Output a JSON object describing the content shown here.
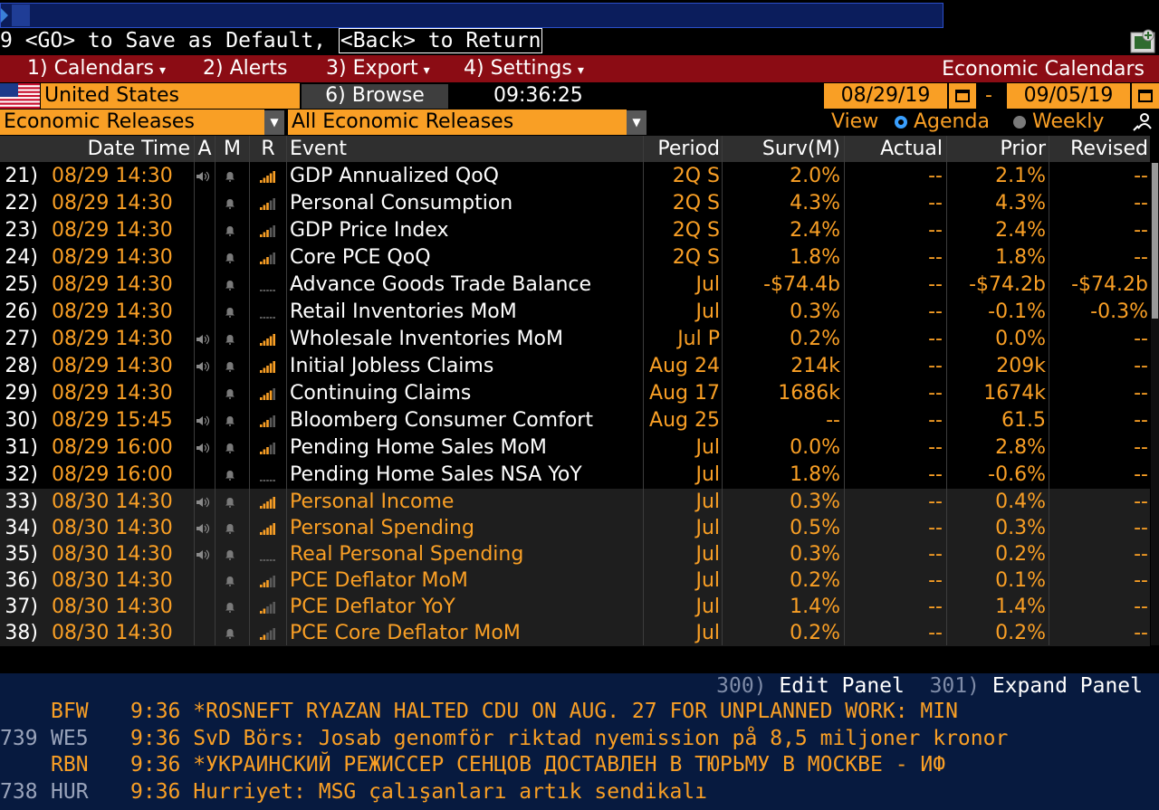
{
  "command_hint": {
    "prefix": "9 <GO> to Save as Default, ",
    "back": "<Back> to Return"
  },
  "menu": {
    "items": [
      {
        "label": "1) Calendars",
        "dropdown": true
      },
      {
        "label": "2) Alerts",
        "dropdown": false
      },
      {
        "label": "3) Export",
        "dropdown": true
      },
      {
        "label": "4) Settings",
        "dropdown": true
      }
    ],
    "title": "Economic Calendars"
  },
  "toolbar": {
    "country": "United States",
    "browse_label": "6) Browse",
    "time": "09:36:25",
    "start_date": "08/29/19",
    "range_dash": "-",
    "end_date": "09/05/19",
    "category": "Economic Releases",
    "filter": "All Economic Releases",
    "view_label": "View",
    "view_options": [
      {
        "label": "Agenda",
        "selected": true
      },
      {
        "label": "Weekly",
        "selected": false
      }
    ]
  },
  "table": {
    "headers": {
      "date_time": "Date Time",
      "a": "A",
      "m": "M",
      "r": "R",
      "event": "Event",
      "period": "Period",
      "surv": "Surv(M)",
      "actual": "Actual",
      "prior": "Prior",
      "revised": "Revised"
    },
    "rows": [
      {
        "num": "21)",
        "dt": "08/29 14:30",
        "audio": true,
        "rel": 5,
        "event": "GDP Annualized QoQ",
        "period": "2Q S",
        "surv": "2.0%",
        "actual": "--",
        "prior": "2.1%",
        "revised": "--"
      },
      {
        "num": "22)",
        "dt": "08/29 14:30",
        "audio": false,
        "rel": 3,
        "event": "Personal Consumption",
        "period": "2Q S",
        "surv": "4.3%",
        "actual": "--",
        "prior": "4.3%",
        "revised": "--"
      },
      {
        "num": "23)",
        "dt": "08/29 14:30",
        "audio": false,
        "rel": 3,
        "event": "GDP Price Index",
        "period": "2Q S",
        "surv": "2.4%",
        "actual": "--",
        "prior": "2.4%",
        "revised": "--"
      },
      {
        "num": "24)",
        "dt": "08/29 14:30",
        "audio": false,
        "rel": 3,
        "event": "Core PCE QoQ",
        "period": "2Q S",
        "surv": "1.8%",
        "actual": "--",
        "prior": "1.8%",
        "revised": "--"
      },
      {
        "num": "25)",
        "dt": "08/29 14:30",
        "audio": false,
        "rel": 0,
        "event": "Advance Goods Trade Balance",
        "period": "Jul",
        "surv": "-$74.4b",
        "actual": "--",
        "prior": "-$74.2b",
        "revised": "-$74.2b"
      },
      {
        "num": "26)",
        "dt": "08/29 14:30",
        "audio": false,
        "rel": 0,
        "event": "Retail Inventories MoM",
        "period": "Jul",
        "surv": "0.3%",
        "actual": "--",
        "prior": "-0.1%",
        "revised": "-0.3%"
      },
      {
        "num": "27)",
        "dt": "08/29 14:30",
        "audio": true,
        "rel": 5,
        "event": "Wholesale Inventories MoM",
        "period": "Jul P",
        "surv": "0.2%",
        "actual": "--",
        "prior": "0.0%",
        "revised": "--"
      },
      {
        "num": "28)",
        "dt": "08/29 14:30",
        "audio": true,
        "rel": 5,
        "event": "Initial Jobless Claims",
        "period": "Aug 24",
        "surv": "214k",
        "actual": "--",
        "prior": "209k",
        "revised": "--"
      },
      {
        "num": "29)",
        "dt": "08/29 14:30",
        "audio": false,
        "rel": 4,
        "event": "Continuing Claims",
        "period": "Aug 17",
        "surv": "1686k",
        "actual": "--",
        "prior": "1674k",
        "revised": "--"
      },
      {
        "num": "30)",
        "dt": "08/29 15:45",
        "audio": true,
        "rel": 3,
        "event": "Bloomberg Consumer Comfort",
        "period": "Aug 25",
        "surv": "--",
        "actual": "--",
        "prior": "61.5",
        "revised": "--"
      },
      {
        "num": "31)",
        "dt": "08/29 16:00",
        "audio": true,
        "rel": 3,
        "event": "Pending Home Sales MoM",
        "period": "Jul",
        "surv": "0.0%",
        "actual": "--",
        "prior": "2.8%",
        "revised": "--"
      },
      {
        "num": "32)",
        "dt": "08/29 16:00",
        "audio": false,
        "rel": 0,
        "event": "Pending Home Sales NSA YoY",
        "period": "Jul",
        "surv": "1.8%",
        "actual": "--",
        "prior": "-0.6%",
        "revised": "--"
      },
      {
        "num": "33)",
        "dt": "08/30 14:30",
        "audio": true,
        "rel": 5,
        "event": "Personal Income",
        "period": "Jul",
        "surv": "0.3%",
        "actual": "--",
        "prior": "0.4%",
        "revised": "--"
      },
      {
        "num": "34)",
        "dt": "08/30 14:30",
        "audio": true,
        "rel": 5,
        "event": "Personal Spending",
        "period": "Jul",
        "surv": "0.5%",
        "actual": "--",
        "prior": "0.3%",
        "revised": "--"
      },
      {
        "num": "35)",
        "dt": "08/30 14:30",
        "audio": true,
        "rel": 0,
        "event": "Real Personal Spending",
        "period": "Jul",
        "surv": "0.3%",
        "actual": "--",
        "prior": "0.2%",
        "revised": "--"
      },
      {
        "num": "36)",
        "dt": "08/30 14:30",
        "audio": false,
        "rel": 3,
        "event": "PCE Deflator MoM",
        "period": "Jul",
        "surv": "0.2%",
        "actual": "--",
        "prior": "0.1%",
        "revised": "--"
      },
      {
        "num": "37)",
        "dt": "08/30 14:30",
        "audio": false,
        "rel": 2,
        "event": "PCE Deflator YoY",
        "period": "Jul",
        "surv": "1.4%",
        "actual": "--",
        "prior": "1.4%",
        "revised": "--"
      },
      {
        "num": "38)",
        "dt": "08/30 14:30",
        "audio": false,
        "rel": 2,
        "event": "PCE Core Deflator MoM",
        "period": "Jul",
        "surv": "0.2%",
        "actual": "--",
        "prior": "0.2%",
        "revised": "--"
      }
    ]
  },
  "news": {
    "edit_key": "300)",
    "edit_label": "Edit Panel",
    "expand_key": "301)",
    "expand_label": "Expand Panel",
    "items": [
      {
        "count": "",
        "source": "BFW",
        "time": "9:36",
        "headline": "*ROSNEFT RYAZAN HALTED CDU ON AUG. 27 FOR UNPLANNED WORK: MIN"
      },
      {
        "count": "739",
        "source": "WE5",
        "time": "9:36",
        "headline": "SvD Börs: Josab genomför riktad nyemission på 8,5 miljoner kronor"
      },
      {
        "count": "",
        "source": "RBN",
        "time": "9:36",
        "headline": "*УКРАИНСКИЙ РЕЖИССЕР СЕНЦОВ ДОСТАВЛЕН В ТЮРЬМУ В МОСКВЕ - ИФ"
      },
      {
        "count": "738",
        "source": "HUR",
        "time": "9:36",
        "headline": "Hurriyet: MSG çalışanları artık sendikalı"
      }
    ]
  },
  "colors": {
    "accent": "#f99f25",
    "menu_bg": "#8b0c14",
    "news_bg": "#071a3f",
    "alt_row_bg": "#1e1e1e",
    "radio_selected": "#3aa0ff"
  }
}
